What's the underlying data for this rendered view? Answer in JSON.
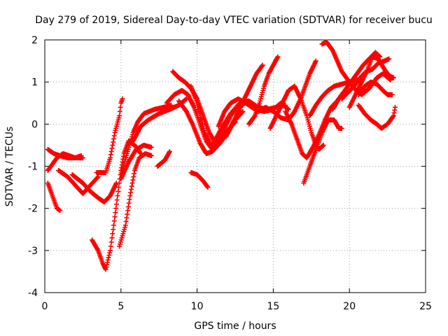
{
  "chart_data": {
    "type": "scatter",
    "title": "Day 279 of 2019, Sidereal Day-to-day VTEC variation (SDTVAR) for receiver bucu",
    "xlabel": "GPS time / hours",
    "ylabel": "SDTVAR / TECUs",
    "xlim": [
      0,
      25
    ],
    "ylim": [
      -4,
      2
    ],
    "xticks": [
      0,
      5,
      10,
      15,
      20,
      25
    ],
    "yticks": [
      -4,
      -3,
      -2,
      -1,
      0,
      1,
      2
    ],
    "xtick_labels": [
      "0",
      "5",
      "10",
      "15",
      "20",
      "25"
    ],
    "ytick_labels": [
      "-4",
      "-3",
      "-2",
      "-1",
      "0",
      "1",
      "2"
    ],
    "grid": true,
    "marker": "plus",
    "color": "#ff0000",
    "tracks": [
      [
        [
          0.2,
          -0.6
        ],
        [
          0.6,
          -0.7
        ],
        [
          1.0,
          -0.75
        ],
        [
          1.5,
          -0.8
        ],
        [
          2.0,
          -0.8
        ],
        [
          2.4,
          -0.75
        ]
      ],
      [
        [
          0.2,
          -1.1
        ],
        [
          0.8,
          -0.8
        ],
        [
          1.2,
          -0.7
        ],
        [
          1.6,
          -0.75
        ],
        [
          2.0,
          -0.8
        ],
        [
          2.5,
          -0.8
        ]
      ],
      [
        [
          0.2,
          -1.4
        ],
        [
          0.5,
          -1.7
        ],
        [
          0.8,
          -2.0
        ],
        [
          1.0,
          -2.05
        ]
      ],
      [
        [
          0.9,
          -1.1
        ],
        [
          1.5,
          -1.25
        ],
        [
          2.0,
          -1.45
        ],
        [
          2.5,
          -1.65
        ],
        [
          3.0,
          -1.45
        ],
        [
          3.5,
          -1.25
        ]
      ],
      [
        [
          1.8,
          -1.2
        ],
        [
          2.5,
          -1.4
        ],
        [
          3.0,
          -1.6
        ],
        [
          3.5,
          -1.75
        ],
        [
          3.9,
          -1.85
        ],
        [
          4.3,
          -1.7
        ],
        [
          4.7,
          -1.4
        ]
      ],
      [
        [
          3.1,
          -2.75
        ],
        [
          3.5,
          -3.0
        ],
        [
          3.8,
          -3.3
        ],
        [
          4.0,
          -3.45
        ],
        [
          4.3,
          -3.0
        ],
        [
          4.6,
          -2.2
        ],
        [
          5.0,
          -1.1
        ],
        [
          5.2,
          -0.7
        ],
        [
          5.5,
          -0.4
        ],
        [
          5.9,
          -0.5
        ],
        [
          6.3,
          -0.7
        ]
      ],
      [
        [
          3.4,
          -1.15
        ],
        [
          4.0,
          -1.15
        ],
        [
          4.3,
          -0.8
        ],
        [
          4.6,
          -0.2
        ],
        [
          4.9,
          0.2
        ],
        [
          5.0,
          0.5
        ],
        [
          5.1,
          0.6
        ]
      ],
      [
        [
          4.9,
          -2.9
        ],
        [
          5.3,
          -2.4
        ],
        [
          5.6,
          -1.7
        ],
        [
          5.9,
          -1.1
        ],
        [
          6.2,
          -0.8
        ],
        [
          6.6,
          -0.7
        ],
        [
          7.0,
          -0.75
        ]
      ],
      [
        [
          5.0,
          -1.3
        ],
        [
          5.5,
          -0.9
        ],
        [
          6.0,
          -0.6
        ],
        [
          6.5,
          -0.5
        ],
        [
          7.0,
          -0.55
        ]
      ],
      [
        [
          5.0,
          -1.2
        ],
        [
          5.4,
          -0.7
        ],
        [
          5.8,
          -0.2
        ],
        [
          6.1,
          0.05
        ],
        [
          6.5,
          0.25
        ],
        [
          7.2,
          0.35
        ],
        [
          7.8,
          0.4
        ],
        [
          8.3,
          0.45
        ]
      ],
      [
        [
          5.8,
          -0.4
        ],
        [
          6.3,
          -0.05
        ],
        [
          6.8,
          0.1
        ],
        [
          7.5,
          0.25
        ],
        [
          8.2,
          0.35
        ],
        [
          8.8,
          0.45
        ],
        [
          9.3,
          0.6
        ]
      ],
      [
        [
          7.4,
          -1.0
        ],
        [
          7.9,
          -0.85
        ],
        [
          8.2,
          -0.65
        ]
      ],
      [
        [
          8.0,
          0.5
        ],
        [
          8.5,
          0.7
        ],
        [
          9.0,
          0.8
        ],
        [
          9.4,
          0.7
        ],
        [
          9.8,
          0.4
        ],
        [
          10.2,
          0.0
        ],
        [
          10.6,
          -0.4
        ],
        [
          11.0,
          -0.6
        ],
        [
          11.4,
          -0.4
        ],
        [
          11.8,
          -0.1
        ],
        [
          12.2,
          0.2
        ],
        [
          12.6,
          0.4
        ],
        [
          13.0,
          0.45
        ]
      ],
      [
        [
          8.4,
          1.25
        ],
        [
          8.8,
          1.1
        ],
        [
          9.2,
          1.0
        ],
        [
          9.6,
          0.85
        ],
        [
          10.0,
          0.6
        ],
        [
          10.4,
          0.2
        ],
        [
          10.8,
          -0.2
        ],
        [
          11.2,
          -0.45
        ],
        [
          11.6,
          -0.4
        ],
        [
          12.0,
          -0.15
        ],
        [
          12.5,
          0.05
        ]
      ],
      [
        [
          8.8,
          0.55
        ],
        [
          9.3,
          0.3
        ],
        [
          9.7,
          0.0
        ],
        [
          10.2,
          -0.45
        ],
        [
          10.6,
          -0.7
        ],
        [
          11.0,
          -0.65
        ],
        [
          11.5,
          -0.45
        ],
        [
          12.0,
          -0.2
        ],
        [
          12.5,
          0.1
        ],
        [
          13.0,
          0.3
        ]
      ],
      [
        [
          9.6,
          0.9
        ],
        [
          9.9,
          0.6
        ],
        [
          10.2,
          0.2
        ],
        [
          10.5,
          -0.2
        ],
        [
          10.9,
          -0.5
        ],
        [
          11.2,
          -0.5
        ]
      ],
      [
        [
          9.6,
          -1.15
        ],
        [
          10.0,
          -1.2
        ],
        [
          10.4,
          -1.35
        ],
        [
          10.7,
          -1.5
        ]
      ],
      [
        [
          11.0,
          -0.5
        ],
        [
          11.6,
          -0.1
        ],
        [
          12.2,
          0.25
        ],
        [
          12.8,
          0.5
        ],
        [
          13.4,
          0.55
        ],
        [
          14.0,
          0.4
        ],
        [
          14.6,
          0.35
        ],
        [
          15.2,
          0.4
        ],
        [
          15.8,
          0.45
        ]
      ],
      [
        [
          11.4,
          -0.05
        ],
        [
          11.8,
          0.3
        ],
        [
          12.2,
          0.5
        ],
        [
          12.7,
          0.6
        ],
        [
          13.2,
          0.5
        ],
        [
          13.8,
          0.35
        ],
        [
          14.4,
          0.3
        ],
        [
          15.0,
          0.35
        ],
        [
          15.5,
          0.5
        ],
        [
          16.0,
          0.35
        ]
      ],
      [
        [
          11.9,
          -0.3
        ],
        [
          12.3,
          0.0
        ],
        [
          12.7,
          0.3
        ],
        [
          13.1,
          0.6
        ],
        [
          13.5,
          0.9
        ],
        [
          13.9,
          1.2
        ],
        [
          14.3,
          1.4
        ]
      ],
      [
        [
          13.4,
          0.0
        ],
        [
          13.8,
          0.2
        ],
        [
          14.1,
          0.5
        ],
        [
          14.4,
          0.9
        ],
        [
          14.7,
          1.2
        ],
        [
          15.0,
          1.4
        ],
        [
          15.3,
          1.6
        ]
      ],
      [
        [
          14.0,
          0.3
        ],
        [
          14.5,
          0.4
        ],
        [
          15.0,
          0.3
        ],
        [
          15.5,
          0.15
        ],
        [
          16.0,
          0.1
        ],
        [
          16.4,
          0.3
        ],
        [
          16.8,
          0.6
        ],
        [
          17.1,
          0.9
        ],
        [
          17.4,
          1.2
        ],
        [
          17.8,
          1.5
        ]
      ],
      [
        [
          14.8,
          -0.1
        ],
        [
          15.2,
          0.2
        ],
        [
          15.6,
          0.5
        ],
        [
          16.0,
          0.8
        ],
        [
          16.4,
          0.9
        ],
        [
          16.8,
          0.6
        ],
        [
          17.2,
          0.2
        ],
        [
          17.5,
          -0.2
        ],
        [
          17.8,
          -0.5
        ],
        [
          18.0,
          -0.6
        ],
        [
          18.3,
          -0.5
        ]
      ],
      [
        [
          15.8,
          0.3
        ],
        [
          16.2,
          0.0
        ],
        [
          16.6,
          -0.4
        ],
        [
          16.9,
          -0.7
        ],
        [
          17.2,
          -0.8
        ],
        [
          17.6,
          -0.55
        ],
        [
          18.0,
          -0.25
        ],
        [
          18.4,
          0.1
        ],
        [
          18.8,
          0.4
        ],
        [
          19.2,
          0.55
        ],
        [
          19.6,
          0.75
        ]
      ],
      [
        [
          17.0,
          -1.4
        ],
        [
          17.4,
          -1.0
        ],
        [
          17.8,
          -0.6
        ],
        [
          18.2,
          -0.2
        ],
        [
          18.6,
          0.1
        ],
        [
          19.0,
          0.1
        ],
        [
          19.3,
          -0.1
        ],
        [
          19.5,
          -0.1
        ]
      ],
      [
        [
          17.4,
          0.2
        ],
        [
          17.8,
          0.45
        ],
        [
          18.2,
          0.65
        ],
        [
          18.6,
          0.8
        ],
        [
          19.0,
          0.9
        ],
        [
          19.5,
          0.95
        ],
        [
          20.0,
          1.0
        ],
        [
          20.5,
          1.05
        ]
      ],
      [
        [
          18.2,
          1.9
        ],
        [
          18.5,
          1.95
        ],
        [
          18.9,
          1.75
        ],
        [
          19.2,
          1.5
        ],
        [
          19.5,
          1.25
        ],
        [
          19.9,
          1.05
        ],
        [
          20.3,
          0.85
        ],
        [
          20.8,
          0.7
        ],
        [
          21.3,
          0.85
        ],
        [
          21.8,
          1.1
        ],
        [
          22.2,
          1.2
        ],
        [
          22.7,
          1.05
        ]
      ],
      [
        [
          18.9,
          0.35
        ],
        [
          19.3,
          0.6
        ],
        [
          19.7,
          0.8
        ],
        [
          20.1,
          1.0
        ],
        [
          20.5,
          1.2
        ],
        [
          20.9,
          1.4
        ],
        [
          21.3,
          1.55
        ],
        [
          21.7,
          1.7
        ],
        [
          22.0,
          1.6
        ]
      ],
      [
        [
          19.5,
          0.6
        ],
        [
          19.9,
          0.75
        ],
        [
          20.3,
          0.9
        ],
        [
          20.7,
          1.1
        ],
        [
          21.1,
          1.25
        ],
        [
          21.5,
          1.3
        ],
        [
          21.9,
          1.45
        ],
        [
          22.3,
          1.5
        ],
        [
          22.6,
          1.55
        ]
      ],
      [
        [
          20.0,
          0.4
        ],
        [
          20.4,
          0.7
        ],
        [
          20.8,
          1.0
        ],
        [
          21.2,
          1.3
        ],
        [
          21.5,
          1.6
        ],
        [
          21.9,
          1.55
        ],
        [
          22.3,
          1.3
        ],
        [
          22.6,
          1.15
        ],
        [
          22.9,
          1.1
        ]
      ],
      [
        [
          20.6,
          0.7
        ],
        [
          21.0,
          0.9
        ],
        [
          21.4,
          1.0
        ],
        [
          21.8,
          0.95
        ],
        [
          22.2,
          0.8
        ],
        [
          22.5,
          0.7
        ],
        [
          22.8,
          0.7
        ]
      ],
      [
        [
          20.6,
          0.45
        ],
        [
          21.0,
          0.25
        ],
        [
          21.4,
          0.1
        ],
        [
          21.8,
          0.0
        ],
        [
          22.1,
          -0.1
        ],
        [
          22.5,
          0.0
        ],
        [
          22.9,
          0.2
        ],
        [
          23.0,
          0.4
        ]
      ]
    ]
  }
}
